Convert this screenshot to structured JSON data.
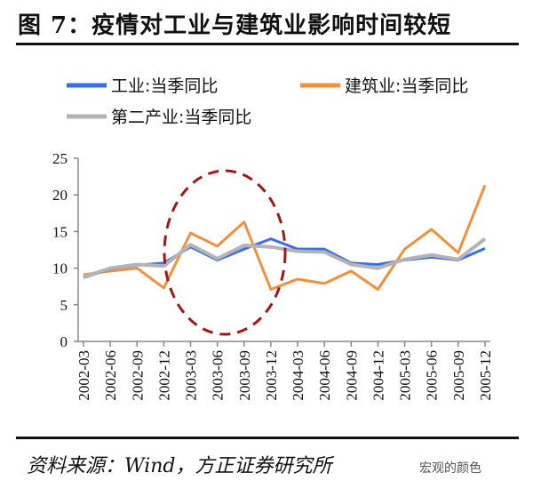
{
  "title": "图 7：疫情对工业与建筑业影响时间较短",
  "footer": "资料来源：Wind，方正证券研究所",
  "watermark": "宏观的颜色",
  "chart_data": {
    "type": "line",
    "title": "",
    "ylim": [
      0,
      25
    ],
    "yticks": [
      0,
      5,
      10,
      15,
      20,
      25
    ],
    "grid": false,
    "legend_position": "top",
    "categories": [
      "2002-03",
      "2002-06",
      "2002-09",
      "2002-12",
      "2003-03",
      "2003-06",
      "2003-09",
      "2003-12",
      "2004-03",
      "2004-06",
      "2004-09",
      "2004-12",
      "2005-03",
      "2005-06",
      "2005-09",
      "2005-12"
    ],
    "series": [
      {
        "name": "工业:当季同比",
        "color": "#3a6ee8",
        "values": [
          8.7,
          9.9,
          10.4,
          10.7,
          12.9,
          11.1,
          12.6,
          14.0,
          12.6,
          12.6,
          10.7,
          10.5,
          11.1,
          11.5,
          11.1,
          12.7
        ]
      },
      {
        "name": "建筑业:当季同比",
        "color": "#f0913f",
        "values": [
          9.1,
          9.6,
          10.0,
          7.3,
          14.8,
          13.0,
          16.3,
          7.1,
          8.5,
          7.9,
          9.6,
          7.1,
          12.6,
          15.3,
          12.1,
          21.3
        ]
      },
      {
        "name": "第二产业:当季同比",
        "color": "#b4b4b4",
        "values": [
          8.8,
          10.0,
          10.5,
          10.3,
          13.2,
          11.3,
          13.1,
          12.9,
          12.3,
          12.2,
          10.5,
          10.0,
          11.2,
          11.8,
          11.2,
          14.0
        ]
      }
    ],
    "annotation": "dashed ellipse highlighting 2003-03 to 2003-09",
    "annotation_color": "#a01818"
  }
}
